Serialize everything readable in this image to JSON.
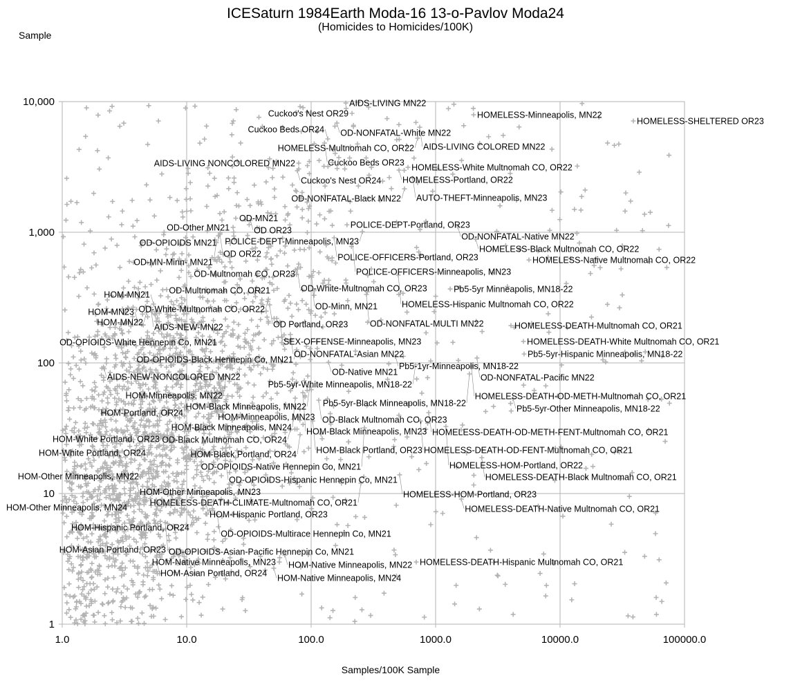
{
  "chart_data": {
    "type": "scatter",
    "title": "ICESaturn 1984Earth Moda-16 13-o-Pavlov Moda24",
    "subtitle": "(Homicides to Homicides/100K)",
    "xlabel": "Samples/100K Sample",
    "ylabel": "Sample",
    "x_scale": "log",
    "y_scale": "log",
    "xlim": [
      1,
      100000
    ],
    "ylim": [
      1,
      10000
    ],
    "grid": true,
    "x_ticks": [
      "1.0",
      "10.0",
      "100.0",
      "1000.0",
      "10000.0",
      "100000.0"
    ],
    "y_ticks": [
      "1",
      "10",
      "100",
      "1,000",
      "10,000"
    ],
    "marker": "cross",
    "colors": {
      "marker": "#b3b3b3",
      "grid": "#b3b3b3",
      "label": "#000000"
    },
    "labeled_points": [
      {
        "label": "AIDS-LIVING MN22",
        "x": 190,
        "y": 9750
      },
      {
        "label": "Cuckoo's Nest OR29",
        "x": 213,
        "y": 8130
      },
      {
        "label": "HOMELESS-Minneapolis, MN22",
        "x": 2020,
        "y": 7930
      },
      {
        "label": "HOMELESS-SHELTERED OR23",
        "x": 38800,
        "y": 7110
      },
      {
        "label": "OD-NONFATAL-White MN22",
        "x": 161,
        "y": 6850
      },
      {
        "label": "AIDS-LIVING COLORED MN22",
        "x": 745,
        "y": 6370
      },
      {
        "label": "HOMELESS-Multnomah CO, OR22",
        "x": 717,
        "y": 5250
      },
      {
        "label": "Cuckoo Beds OR24",
        "x": 136,
        "y": 5180
      },
      {
        "label": "Cuckoo Beds OR23",
        "x": 128,
        "y": 4820
      },
      {
        "label": "AIDS-LIVING NONCOLORED MN22",
        "x": 79.4,
        "y": 3380
      },
      {
        "label": "Cuckoo's Nest OR24",
        "x": 77.4,
        "y": 2960
      },
      {
        "label": "HOMELESS-White Multnomah CO, OR22",
        "x": 600,
        "y": 3140
      },
      {
        "label": "HOMELESS-Portland, OR22",
        "x": 508,
        "y": 2990
      },
      {
        "label": "AUTO-THEFT-Minneapolis, MN23",
        "x": 656,
        "y": 2590
      },
      {
        "label": "OD-NONFATAL-Black MN22",
        "x": 562,
        "y": 2150
      },
      {
        "label": "OD-MN21",
        "x": 24.8,
        "y": 1280
      },
      {
        "label": "OD OR23",
        "x": 32.5,
        "y": 1230
      },
      {
        "label": "OD-Other MN21",
        "x": 23.6,
        "y": 1090
      },
      {
        "label": "OD-OPIOIDS MN21",
        "x": 18.6,
        "y": 988
      },
      {
        "label": "OD OR22",
        "x": 18.5,
        "y": 964
      },
      {
        "label": "OD-MN-Minn- MN21",
        "x": 17.3,
        "y": 833
      },
      {
        "label": "POLICE-DEPT-Portland, OR23",
        "x": 194,
        "y": 1140
      },
      {
        "label": "OD-NONFATAL-Native MN22",
        "x": 1510,
        "y": 1100
      },
      {
        "label": "POLICE-DEPT-Minneapolis, MN23",
        "x": 258,
        "y": 1010
      },
      {
        "label": "POLICE-OFFICERS-Portland, OR23",
        "x": 153,
        "y": 907
      },
      {
        "label": "HOMELESS-Black Multnomah CO, OR22",
        "x": 2100,
        "y": 885
      },
      {
        "label": "POLICE-OFFICERS-Minneapolis, MN23",
        "x": 215,
        "y": 833
      },
      {
        "label": "HOMELESS-Native Multnomah CO, OR22",
        "x": 5620,
        "y": 614
      },
      {
        "label": "OD-Multnomah CO, OR23",
        "x": 79.4,
        "y": 571
      },
      {
        "label": "OD-White-Multnomah CO, OR23",
        "x": 77.4,
        "y": 524
      },
      {
        "label": "OD-Minn, MN21",
        "x": 101,
        "y": 453
      },
      {
        "label": "HOMELESS-Hispanic Multnomah CO, OR22",
        "x": 501,
        "y": 470
      },
      {
        "label": "Pb5-5yr Minneapolis, MN18-22",
        "x": 1310,
        "y": 368
      },
      {
        "label": "OD-Multnomah CO, OR21",
        "x": 50.1,
        "y": 359
      },
      {
        "label": "OD-NONFATAL-MULTI MN22",
        "x": 278,
        "y": 334
      },
      {
        "label": "OD-White-Multnomah CO, OR22",
        "x": 45.3,
        "y": 307
      },
      {
        "label": "OD Portland, OR23",
        "x": 46.4,
        "y": 278
      },
      {
        "label": "HOM-MN21",
        "x": 5.41,
        "y": 282
      },
      {
        "label": "AIDS-NEW-MN22",
        "x": 5.14,
        "y": 265
      },
      {
        "label": "HOM-MN22",
        "x": 4.76,
        "y": 243
      },
      {
        "label": "HOM-MN23",
        "x": 4.03,
        "y": 208
      },
      {
        "label": "SEX-OFFENSE-Minneapolis, MN23",
        "x": 56.2,
        "y": 205
      },
      {
        "label": "OD-NONFATAL-Asian MN22",
        "x": 68.1,
        "y": 165
      },
      {
        "label": "OD-OPIOIDS-White Hennepin Co, MN21",
        "x": 18.7,
        "y": 144
      },
      {
        "label": "OD-OPIOIDS-Black Hennepin Co, MN21",
        "x": 76.4,
        "y": 126
      },
      {
        "label": "HOMELESS-DEATH-Multnomah CO, OR21",
        "x": 4030,
        "y": 193
      },
      {
        "label": "HOMELESS-DEATH-White Multnomah CO, OR21",
        "x": 5080,
        "y": 146
      },
      {
        "label": "Pb5-1yr-Minneapolis, MN18-22",
        "x": 476,
        "y": 112
      },
      {
        "label": "OD-NONFATAL-Pacific MN22",
        "x": 2150,
        "y": 109
      },
      {
        "label": "Pb5-5yr-Hispanic Minneapolis, MN18-22",
        "x": 5140,
        "y": 117
      },
      {
        "label": "OD-Native MN21",
        "x": 138,
        "y": 101
      },
      {
        "label": "Pb5-5yr-White Minneapolis, MN18-22",
        "x": 690,
        "y": 96.4
      },
      {
        "label": "HOMELESS-DEATH-OD-METH-Multnomah CO, OR21",
        "x": 1940,
        "y": 93
      },
      {
        "label": "Pb5-5yr-Black Minneapolis, MN18-22",
        "x": 1870,
        "y": 82.3
      },
      {
        "label": "AIDS-NEW-NONCOLORED MN22",
        "x": 2.15,
        "y": 93
      },
      {
        "label": "HOM-Minneapolis, MN22",
        "x": 20.7,
        "y": 79.3
      },
      {
        "label": "HOM-Minneapolis, MN23",
        "x": 16.7,
        "y": 64.5
      },
      {
        "label": "HOM-Portland, OR24",
        "x": 10,
        "y": 58.5
      },
      {
        "label": "HOM-Black Minneapolis, MN22",
        "x": 97.5,
        "y": 65.3
      },
      {
        "label": "HOM-Black Minneapolis, MN23",
        "x": 85.8,
        "y": 59.2
      },
      {
        "label": "HOM-Black Minneapolis, MN24",
        "x": 74.5,
        "y": 53.7
      },
      {
        "label": "OD-Black Multnomah CO, OR23",
        "x": 115,
        "y": 51.8
      },
      {
        "label": "Pb5-5yr-Other Minneapolis, MN18-22",
        "x": 4190,
        "y": 53.1
      },
      {
        "label": "HOMELESS-DEATH-OD-METH-FENT-Multnomah CO, OR21",
        "x": 880,
        "y": 41.6
      },
      {
        "label": "HOM-Black Portland, OR23",
        "x": 103,
        "y": 35.9
      },
      {
        "label": "HOMELESS-DEATH-OD-FENT-Multnomah CO, OR21",
        "x": 755,
        "y": 35.9
      },
      {
        "label": "HOMELESS-HOM-Portland, OR22",
        "x": 1210,
        "y": 32.6
      },
      {
        "label": "OD-OPIOIDS-Native Hennepin Co, MN21",
        "x": 268,
        "y": 31.8
      },
      {
        "label": "OD-Black Multnomah CO, OR24",
        "x": 68.1,
        "y": 30.7
      },
      {
        "label": "HOM-Black Portland, OR24",
        "x": 81.5,
        "y": 28.2
      },
      {
        "label": "HOM-White Portland, OR23",
        "x": 6.47,
        "y": 26.2
      },
      {
        "label": "HOM-White Portland, OR24",
        "x": 5.01,
        "y": 20.5
      },
      {
        "label": "OD-OPIOIDS-Hispanic Hennepin Co, MN21",
        "x": 20.5,
        "y": 17.9
      },
      {
        "label": "HOMELESS-DEATH-Black Multnomah CO, OR21",
        "x": 2350,
        "y": 18.8
      },
      {
        "label": "HOMELESS-HOM-Portland, OR23",
        "x": 514,
        "y": 13.9
      },
      {
        "label": "HOMELESS-DEATH-CLIMATE-Multnomah CO, OR21",
        "x": 251,
        "y": 12.0
      },
      {
        "label": "HOM-Other Minneapolis, MN22",
        "x": 4.41,
        "y": 13.6
      },
      {
        "label": "HOM-Other Minneapolis, MN23",
        "x": 3.93,
        "y": 12.2
      },
      {
        "label": "HOM-Other Minneapolis, MN24",
        "x": 3.55,
        "y": 11.0
      },
      {
        "label": "HOMELESS-DEATH-Native Multnomah CO, OR21",
        "x": 1610,
        "y": 9.07
      },
      {
        "label": "HOM-Hispanic Portland, OR23",
        "x": 14.3,
        "y": 8.23
      },
      {
        "label": "OD-OPIOIDS-Multirace Hennepin Co, MN21",
        "x": 17.6,
        "y": 6.94
      },
      {
        "label": "HOM-Hispanic Portland, OR24",
        "x": 11.2,
        "y": 6.53
      },
      {
        "label": "OD-OPIOIDS-Asian-Pacific Hennepin Co, MN21",
        "x": 6.72,
        "y": 6.0
      },
      {
        "label": "HOM-Asian Portland, OR23",
        "x": 7.26,
        "y": 3.73
      },
      {
        "label": "HOM-Native Minneapolis, MN22",
        "x": 61.5,
        "y": 3.38
      },
      {
        "label": "HOM-Asian Portland, OR24",
        "x": 5.77,
        "y": 2.92
      },
      {
        "label": "HOM-Native Minneapolis, MN23",
        "x": 55.5,
        "y": 2.99
      },
      {
        "label": "HOMELESS-DEATH-Hispanic Multnomah CO, OR21",
        "x": 699,
        "y": 2.99
      },
      {
        "label": "HOM-Native Minneapolis, MN24",
        "x": 50.1,
        "y": 2.68
      }
    ]
  }
}
